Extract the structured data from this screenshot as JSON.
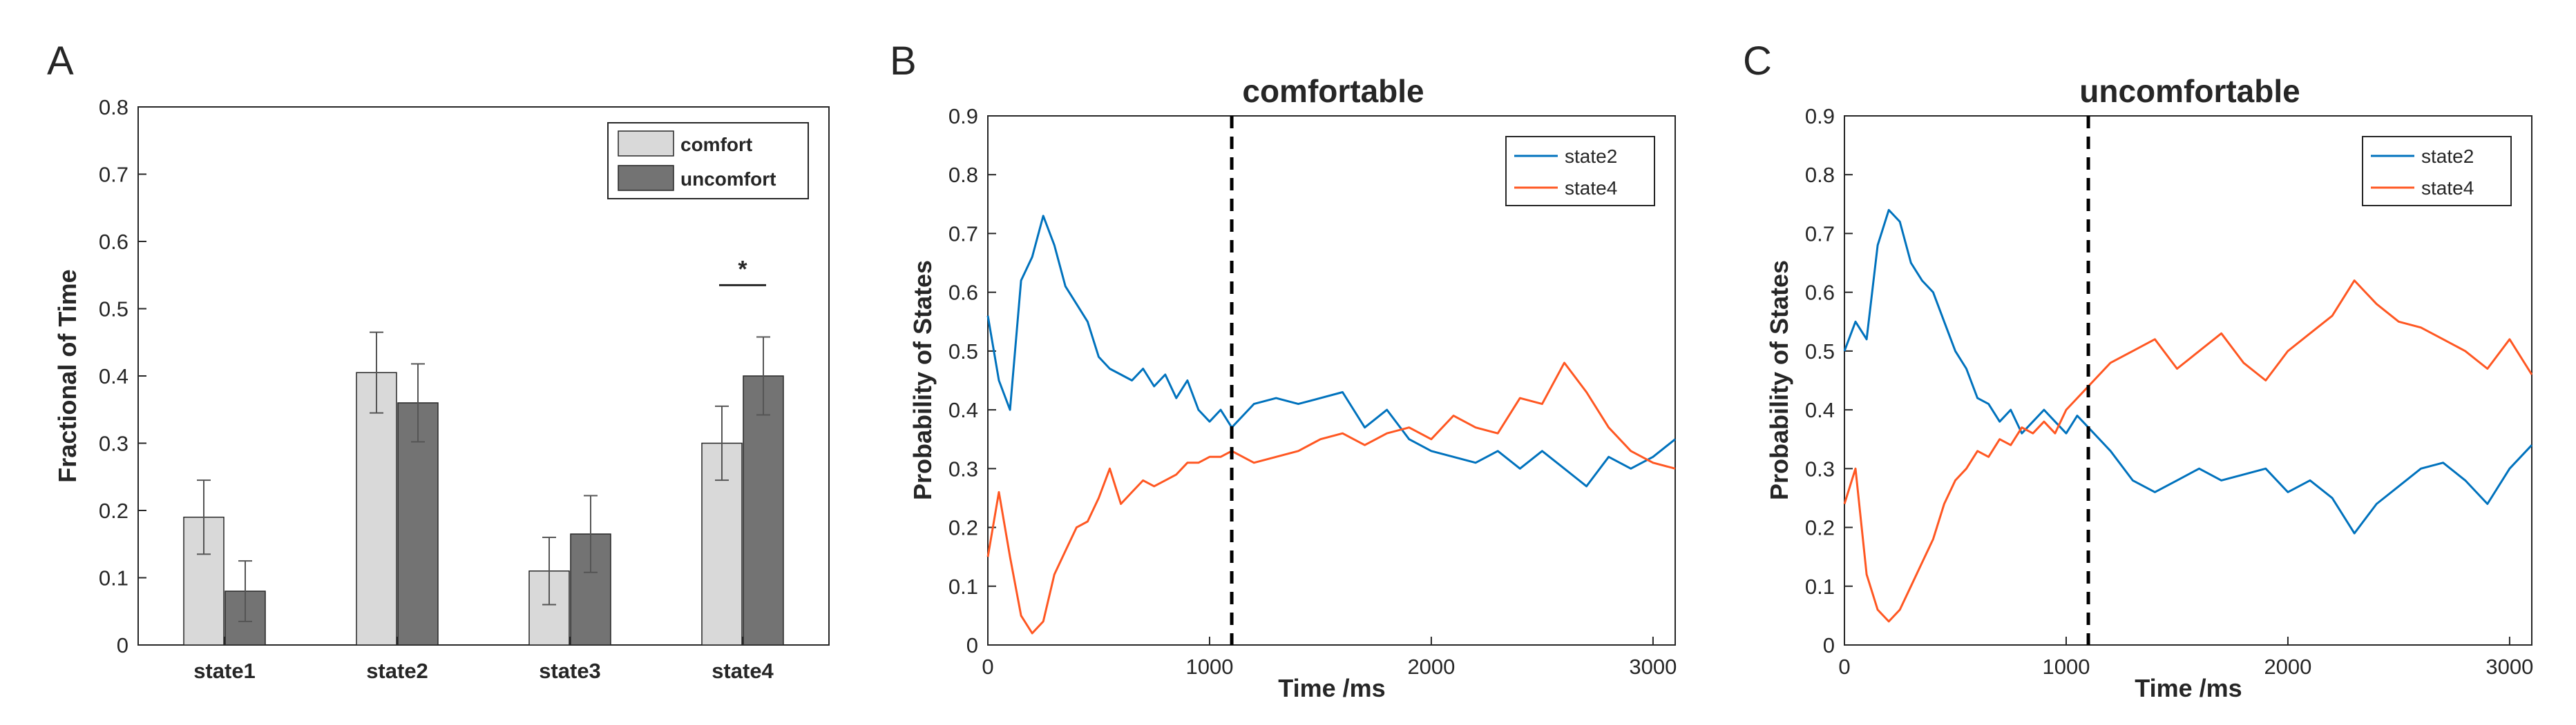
{
  "colors": {
    "comfort": "#d9d9d9",
    "uncomfort": "#737373",
    "state2": "#0072bd",
    "state4": "#ff5722",
    "axis": "#262626"
  },
  "panels": {
    "a": {
      "letter": "A"
    },
    "b": {
      "letter": "B"
    },
    "c": {
      "letter": "C"
    }
  },
  "chart_data": [
    {
      "type": "bar",
      "title": "",
      "xlabel": "",
      "ylabel": "Fractional of Time",
      "ylim": [
        0,
        0.8
      ],
      "yticks": [
        "0",
        "0.1",
        "0.2",
        "0.3",
        "0.4",
        "0.5",
        "0.6",
        "0.7",
        "0.8"
      ],
      "categories": [
        "state1",
        "state2",
        "state3",
        "state4"
      ],
      "legend": {
        "position": "top-right",
        "entries": [
          "comfort",
          "uncomfort"
        ]
      },
      "series": [
        {
          "name": "comfort",
          "values": [
            0.19,
            0.405,
            0.11,
            0.3
          ],
          "errors": [
            0.055,
            0.06,
            0.05,
            0.055
          ]
        },
        {
          "name": "uncomfort",
          "values": [
            0.08,
            0.36,
            0.165,
            0.4
          ],
          "errors": [
            0.045,
            0.058,
            0.057,
            0.058
          ]
        }
      ],
      "annotations": [
        {
          "text": "*",
          "category": "state4",
          "y": 0.535
        }
      ]
    },
    {
      "type": "line",
      "title": "comfortable",
      "xlabel": "Time /ms",
      "ylabel": "Probability of States",
      "xlim": [
        0,
        3100
      ],
      "ylim": [
        0,
        0.9
      ],
      "xticks": [
        "0",
        "1000",
        "2000",
        "3000"
      ],
      "yticks": [
        "0",
        "0.1",
        "0.2",
        "0.3",
        "0.4",
        "0.5",
        "0.6",
        "0.7",
        "0.8",
        "0.9"
      ],
      "vline_x": 1100,
      "legend": {
        "position": "top-right",
        "entries": [
          "state2",
          "state4"
        ]
      },
      "series": [
        {
          "name": "state2",
          "x": [
            0,
            50,
            100,
            150,
            200,
            250,
            300,
            350,
            400,
            450,
            500,
            550,
            600,
            650,
            700,
            750,
            800,
            850,
            900,
            950,
            1000,
            1050,
            1100,
            1200,
            1300,
            1400,
            1500,
            1600,
            1700,
            1800,
            1900,
            2000,
            2100,
            2200,
            2300,
            2400,
            2500,
            2600,
            2700,
            2800,
            2900,
            3000,
            3100
          ],
          "y": [
            0.56,
            0.45,
            0.4,
            0.62,
            0.66,
            0.73,
            0.68,
            0.61,
            0.58,
            0.55,
            0.49,
            0.47,
            0.46,
            0.45,
            0.47,
            0.44,
            0.46,
            0.42,
            0.45,
            0.4,
            0.38,
            0.4,
            0.37,
            0.41,
            0.42,
            0.41,
            0.42,
            0.43,
            0.37,
            0.4,
            0.35,
            0.33,
            0.32,
            0.31,
            0.33,
            0.3,
            0.33,
            0.3,
            0.27,
            0.32,
            0.3,
            0.32,
            0.35
          ]
        },
        {
          "name": "state4",
          "x": [
            0,
            50,
            100,
            150,
            200,
            250,
            300,
            350,
            400,
            450,
            500,
            550,
            600,
            650,
            700,
            750,
            800,
            850,
            900,
            950,
            1000,
            1050,
            1100,
            1200,
            1300,
            1400,
            1500,
            1600,
            1700,
            1800,
            1900,
            2000,
            2100,
            2200,
            2300,
            2400,
            2500,
            2600,
            2700,
            2800,
            2900,
            3000,
            3100
          ],
          "y": [
            0.15,
            0.26,
            0.15,
            0.05,
            0.02,
            0.04,
            0.12,
            0.16,
            0.2,
            0.21,
            0.25,
            0.3,
            0.24,
            0.26,
            0.28,
            0.27,
            0.28,
            0.29,
            0.31,
            0.31,
            0.32,
            0.32,
            0.33,
            0.31,
            0.32,
            0.33,
            0.35,
            0.36,
            0.34,
            0.36,
            0.37,
            0.35,
            0.39,
            0.37,
            0.36,
            0.42,
            0.41,
            0.48,
            0.43,
            0.37,
            0.33,
            0.31,
            0.3
          ]
        }
      ]
    },
    {
      "type": "line",
      "title": "uncomfortable",
      "xlabel": "Time /ms",
      "ylabel": "Probability of States",
      "xlim": [
        0,
        3100
      ],
      "ylim": [
        0,
        0.9
      ],
      "xticks": [
        "0",
        "1000",
        "2000",
        "3000"
      ],
      "yticks": [
        "0",
        "0.1",
        "0.2",
        "0.3",
        "0.4",
        "0.5",
        "0.6",
        "0.7",
        "0.8",
        "0.9"
      ],
      "vline_x": 1100,
      "legend": {
        "position": "top-right",
        "entries": [
          "state2",
          "state4"
        ]
      },
      "series": [
        {
          "name": "state2",
          "x": [
            0,
            50,
            100,
            150,
            200,
            250,
            300,
            350,
            400,
            450,
            500,
            550,
            600,
            650,
            700,
            750,
            800,
            850,
            900,
            950,
            1000,
            1050,
            1100,
            1200,
            1300,
            1400,
            1500,
            1600,
            1700,
            1800,
            1900,
            2000,
            2100,
            2200,
            2300,
            2400,
            2500,
            2600,
            2700,
            2800,
            2900,
            3000,
            3100
          ],
          "y": [
            0.5,
            0.55,
            0.52,
            0.68,
            0.74,
            0.72,
            0.65,
            0.62,
            0.6,
            0.55,
            0.5,
            0.47,
            0.42,
            0.41,
            0.38,
            0.4,
            0.36,
            0.38,
            0.4,
            0.38,
            0.36,
            0.39,
            0.37,
            0.33,
            0.28,
            0.26,
            0.28,
            0.3,
            0.28,
            0.29,
            0.3,
            0.26,
            0.28,
            0.25,
            0.19,
            0.24,
            0.27,
            0.3,
            0.31,
            0.28,
            0.24,
            0.3,
            0.34
          ]
        },
        {
          "name": "state4",
          "x": [
            0,
            50,
            100,
            150,
            200,
            250,
            300,
            350,
            400,
            450,
            500,
            550,
            600,
            650,
            700,
            750,
            800,
            850,
            900,
            950,
            1000,
            1050,
            1100,
            1200,
            1300,
            1400,
            1500,
            1600,
            1700,
            1800,
            1900,
            2000,
            2100,
            2200,
            2300,
            2400,
            2500,
            2600,
            2700,
            2800,
            2900,
            3000,
            3100
          ],
          "y": [
            0.24,
            0.3,
            0.12,
            0.06,
            0.04,
            0.06,
            0.1,
            0.14,
            0.18,
            0.24,
            0.28,
            0.3,
            0.33,
            0.32,
            0.35,
            0.34,
            0.37,
            0.36,
            0.38,
            0.36,
            0.4,
            0.42,
            0.44,
            0.48,
            0.5,
            0.52,
            0.47,
            0.5,
            0.53,
            0.48,
            0.45,
            0.5,
            0.53,
            0.56,
            0.62,
            0.58,
            0.55,
            0.54,
            0.52,
            0.5,
            0.47,
            0.52,
            0.46
          ]
        }
      ]
    }
  ]
}
